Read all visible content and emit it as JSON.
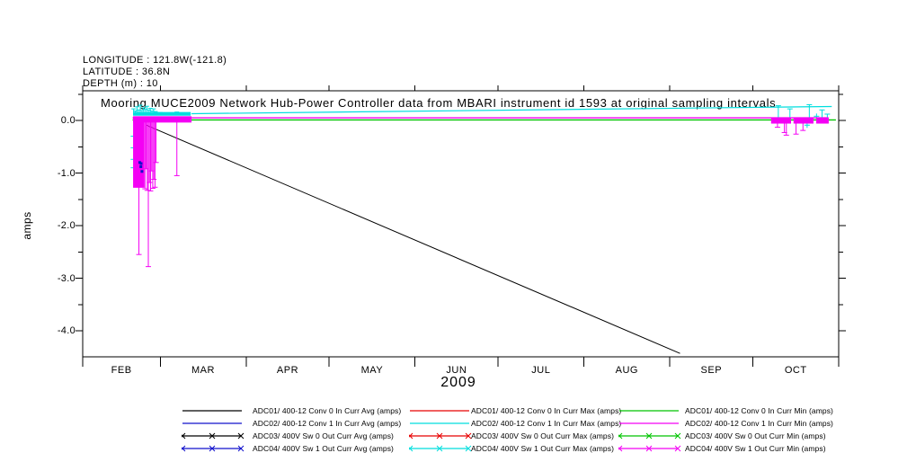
{
  "header": {
    "longitude": "LONGITUDE : 121.8W(-121.8)",
    "latitude": "LATITUDE : 36.8N",
    "depth": "DEPTH (m) : 10"
  },
  "title": "Mooring MUCE2009 Network Hub-Power Controller data from MBARI instrument id 1593 at original sampling intervals",
  "x_axis": {
    "year_label": "2009",
    "months": [
      "FEB",
      "MAR",
      "APR",
      "MAY",
      "JUN",
      "JUL",
      "AUG",
      "SEP",
      "OCT"
    ]
  },
  "y_axis": {
    "label": "amps",
    "tick_labels": [
      "0.0",
      "-1.0",
      "-2.0",
      "-3.0",
      "-4.0"
    ]
  },
  "colors": {
    "black": "#000000",
    "blue": "#1111cc",
    "red": "#e80000",
    "cyan": "#00dede",
    "green": "#00c400",
    "magenta": "#f400f4"
  },
  "legend": {
    "entries": [
      {
        "label": "ADC01/ 400-12 Conv 0 In Curr Avg (amps)",
        "color": "#000000",
        "marker": "none",
        "col": 0,
        "row": 0
      },
      {
        "label": "ADC01/ 400-12 Conv 0 In Curr Max (amps)",
        "color": "#e80000",
        "marker": "none",
        "col": 1,
        "row": 0
      },
      {
        "label": "ADC01/ 400-12 Conv 0 In Curr Min (amps)",
        "color": "#00c400",
        "marker": "none",
        "col": 2,
        "row": 0
      },
      {
        "label": "ADC02/ 400-12 Conv 1 In Curr Avg (amps)",
        "color": "#1111cc",
        "marker": "none",
        "col": 0,
        "row": 1
      },
      {
        "label": "ADC02/ 400-12 Conv 1 In Curr Max (amps)",
        "color": "#00dede",
        "marker": "none",
        "col": 1,
        "row": 1
      },
      {
        "label": "ADC02/ 400-12 Conv 1 In Curr Min (amps)",
        "color": "#f400f4",
        "marker": "none",
        "col": 2,
        "row": 1
      },
      {
        "label": "ADC03/ 400V Sw 0 Out Curr Avg (amps)",
        "color": "#000000",
        "marker": "x",
        "col": 0,
        "row": 2
      },
      {
        "label": "ADC03/ 400V Sw 0 Out Curr Max (amps)",
        "color": "#e80000",
        "marker": "x",
        "col": 1,
        "row": 2
      },
      {
        "label": "ADC03/ 400V Sw 0 Out Curr Min (amps)",
        "color": "#00c400",
        "marker": "x",
        "col": 2,
        "row": 2
      },
      {
        "label": "ADC04/ 400V Sw 1 Out Curr Avg (amps)",
        "color": "#1111cc",
        "marker": "x",
        "col": 0,
        "row": 3
      },
      {
        "label": "ADC04/ 400V Sw 1 Out Curr Max (amps)",
        "color": "#00dede",
        "marker": "x",
        "col": 1,
        "row": 3
      },
      {
        "label": "ADC04/ 400V Sw 1 Out Curr Min (amps)",
        "color": "#f400f4",
        "marker": "x",
        "col": 2,
        "row": 3
      }
    ]
  },
  "chart_data": {
    "type": "line",
    "title": "Mooring MUCE2009 Network Hub-Power Controller data from MBARI instrument id 1593 at original sampling intervals",
    "xlabel": "2009",
    "ylabel": "amps",
    "x_range_doy_2009": [
      32,
      305
    ],
    "x_tick_doys": [
      32,
      60,
      91,
      121,
      152,
      182,
      213,
      244,
      274,
      305
    ],
    "x_tick_month_labels": [
      "FEB",
      "MAR",
      "APR",
      "MAY",
      "JUN",
      "JUL",
      "AUG",
      "SEP",
      "OCT"
    ],
    "ylim": [
      -4.5,
      0.56
    ],
    "y_major_ticks": [
      0.0,
      -1.0,
      -2.0,
      -3.0,
      -4.0
    ],
    "y_minor_ticks": [
      0.5,
      -0.5,
      -1.5,
      -2.5,
      -3.5
    ],
    "grid": false,
    "legend_position": "below",
    "series": [
      {
        "name": "ADC01/ 400-12 Conv 0 In Curr Avg (amps)",
        "color": "#000000",
        "width": 1,
        "points_doy_amps": [
          [
            55.0,
            -0.09
          ],
          [
            247.7,
            -4.43
          ]
        ]
      },
      {
        "name": "ADC01/ 400-12 Conv 0 In Curr Min (amps)",
        "color": "#00c400",
        "width": 1.4,
        "points_doy_amps": [
          [
            50.0,
            0.01
          ],
          [
            304.0,
            0.01
          ]
        ]
      },
      {
        "name": "ADC02/ 400-12 Conv 1 In Curr Min (amps)",
        "color": "#f400f4",
        "width": 1.4,
        "points_doy_amps": [
          [
            50.0,
            0.05
          ],
          [
            301.0,
            0.05
          ]
        ]
      },
      {
        "name": "ADC02/ 400-12 Conv 1 In Curr Max (amps)",
        "color": "#00dede",
        "width": 1.2,
        "points_doy_amps": [
          [
            71.3,
            0.128
          ],
          [
            302.5,
            0.265
          ]
        ]
      }
    ],
    "feb_cluster": {
      "description": "Dense ADC02/ADC04 activity Feb 19 - Mar 12, 2009",
      "solid_block_doy": [
        50.2,
        54.3
      ],
      "solid_block_amps": [
        0.07,
        -1.28
      ],
      "top_band_doy": [
        50.2,
        71.3
      ],
      "top_band_amps": [
        0.08,
        -0.04
      ],
      "cyan_band_doy": [
        50.2,
        71.0
      ],
      "cyan_band_amps": [
        0.16,
        0.09
      ],
      "magenta_spikes_doy_amps": [
        [
          52.3,
          -2.55
        ],
        [
          54.5,
          -1.3
        ],
        [
          54.9,
          -0.92
        ],
        [
          55.3,
          -1.33
        ],
        [
          55.7,
          -2.78
        ],
        [
          56.1,
          -1.18
        ],
        [
          56.5,
          -1.34
        ],
        [
          56.9,
          -0.96
        ],
        [
          57.3,
          -1.29
        ],
        [
          57.7,
          -1.12
        ],
        [
          58.1,
          -1.27
        ],
        [
          58.5,
          -0.8
        ],
        [
          66.0,
          -1.05
        ]
      ],
      "cyan_spikes_doy_amps": [
        [
          50.4,
          0.22
        ],
        [
          51.0,
          0.18
        ],
        [
          51.6,
          0.26
        ],
        [
          52.2,
          0.2
        ],
        [
          52.8,
          0.29
        ],
        [
          53.4,
          0.19
        ],
        [
          54.0,
          0.24
        ],
        [
          54.6,
          0.21
        ],
        [
          55.2,
          0.27
        ],
        [
          55.8,
          0.2
        ],
        [
          56.4,
          0.23
        ],
        [
          57.0,
          0.18
        ],
        [
          57.6,
          0.22
        ],
        [
          58.3,
          0.17
        ],
        [
          60.0,
          0.15
        ],
        [
          63.0,
          0.14
        ],
        [
          66.0,
          0.16
        ],
        [
          69.0,
          0.14
        ]
      ],
      "cyan_side_marks_doy_amps": [
        [
          50.3,
          -0.3
        ],
        [
          50.3,
          -0.52
        ],
        [
          50.3,
          -0.74
        ],
        [
          50.3,
          -0.9
        ]
      ],
      "blue_marks_doy_amps": [
        [
          52.6,
          -0.8
        ],
        [
          53.0,
          -0.88
        ],
        [
          53.4,
          -0.97
        ],
        [
          53.1,
          -0.82
        ]
      ]
    },
    "oct_cluster": {
      "description": "ADC02/ADC04 activity Oct 8 - Oct 28, 2009 around 0 amps",
      "band_segments_doy": [
        [
          280.6,
          287.8
        ],
        [
          288.7,
          295.9
        ],
        [
          296.9,
          301.4
        ]
      ],
      "band_amps": [
        0.06,
        -0.06
      ],
      "magenta_spikes_doy_amps": [
        [
          282.9,
          -0.13
        ],
        [
          285.4,
          -0.23
        ],
        [
          286.1,
          -0.28
        ],
        [
          289.6,
          -0.26
        ],
        [
          292.1,
          -0.19
        ]
      ],
      "cyan_spikes_doy_amps": [
        [
          283.2,
          0.28
        ],
        [
          287.4,
          0.22
        ],
        [
          294.4,
          0.3
        ],
        [
          299.0,
          0.2
        ],
        [
          300.9,
          0.12
        ]
      ],
      "cyan_marks_doy_amps": [
        [
          293.6,
          -0.09
        ],
        [
          297.0,
          0.08
        ]
      ]
    }
  }
}
